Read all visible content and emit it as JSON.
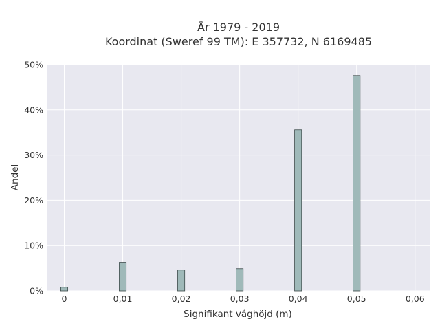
{
  "chart_data": {
    "type": "bar",
    "title": [
      "År 1979 - 2019",
      "Koordinat (Sweref 99 TM): E 357732, N 6169485"
    ],
    "xlabel": "Signifikant våghöjd (m)",
    "ylabel": "Andel",
    "x": [
      0,
      0.01,
      0.02,
      0.03,
      0.04,
      0.05
    ],
    "values": [
      0.8,
      6.3,
      4.6,
      4.9,
      35.6,
      47.6
    ],
    "xlim": [
      -0.003,
      0.0625
    ],
    "ylim": [
      0,
      50
    ],
    "xticks": [
      0,
      0.01,
      0.02,
      0.03,
      0.04,
      0.05,
      0.06
    ],
    "xtick_labels": [
      "0",
      "0,01",
      "0,02",
      "0,03",
      "0,04",
      "0,05",
      "0,06"
    ],
    "yticks": [
      0,
      10,
      20,
      30,
      40,
      50
    ],
    "ytick_labels": [
      "0%",
      "10%",
      "20%",
      "30%",
      "40%",
      "50%"
    ],
    "grid": true,
    "legend": "none",
    "colors": {
      "bar_fill": "#9fb9b9",
      "bar_edge": "#3c4a4a",
      "plot_background": "#e8e8f0",
      "grid": "#ffffff"
    }
  }
}
